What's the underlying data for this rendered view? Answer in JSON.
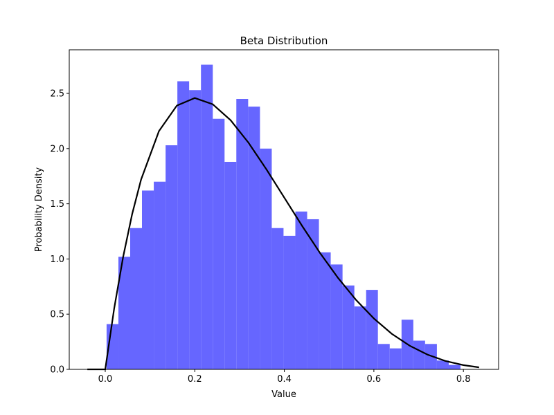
{
  "chart_data": {
    "type": "histogram",
    "title": "Beta Distribution",
    "xlabel": "Value",
    "ylabel": "Probability Density",
    "bins": [
      0.003,
      0.0294,
      0.0557,
      0.082,
      0.1084,
      0.1348,
      0.1611,
      0.1874,
      0.2138,
      0.2402,
      0.2665,
      0.2928,
      0.3192,
      0.3456,
      0.3719,
      0.3982,
      0.4246,
      0.451,
      0.4773,
      0.5036,
      0.53,
      0.5564,
      0.5827,
      0.609,
      0.6354,
      0.6618,
      0.6881,
      0.7144,
      0.7408,
      0.7672,
      0.7935
    ],
    "values": [
      0.41,
      1.02,
      1.28,
      1.62,
      1.7,
      2.03,
      2.61,
      2.53,
      2.76,
      2.27,
      1.88,
      2.45,
      2.38,
      2.0,
      1.28,
      1.21,
      1.43,
      1.36,
      1.06,
      0.95,
      0.76,
      0.57,
      0.72,
      0.23,
      0.19,
      0.45,
      0.26,
      0.23,
      0.08,
      0.04
    ],
    "color": "#6666ff",
    "line": {
      "color": "#000000",
      "x": [
        -0.04,
        0,
        0.02,
        0.04,
        0.06,
        0.08,
        0.12,
        0.16,
        0.2,
        0.24,
        0.28,
        0.32,
        0.36,
        0.4,
        0.44,
        0.48,
        0.52,
        0.56,
        0.6,
        0.64,
        0.68,
        0.72,
        0.76,
        0.8,
        0.835
      ],
      "values": [
        0,
        0,
        0.553,
        1.019,
        1.405,
        1.719,
        2.159,
        2.39,
        2.458,
        2.402,
        2.257,
        2.053,
        1.812,
        1.555,
        1.298,
        1.053,
        0.828,
        0.63,
        0.461,
        0.322,
        0.214,
        0.133,
        0.0756,
        0.0384,
        0.018
      ]
    },
    "xlim": [
      -0.0804,
      0.8786
    ],
    "ylim": [
      0,
      2.895
    ],
    "xticks": [
      {
        "value": 0,
        "label": "0.0"
      },
      0.2,
      0.4,
      0.6,
      0.8
    ],
    "yticks": [
      {
        "value": 0,
        "label": "0.0"
      },
      0.5,
      {
        "value": 1,
        "label": "1.0"
      },
      1.5,
      {
        "value": 2,
        "label": "2.0"
      },
      2.5
    ]
  }
}
